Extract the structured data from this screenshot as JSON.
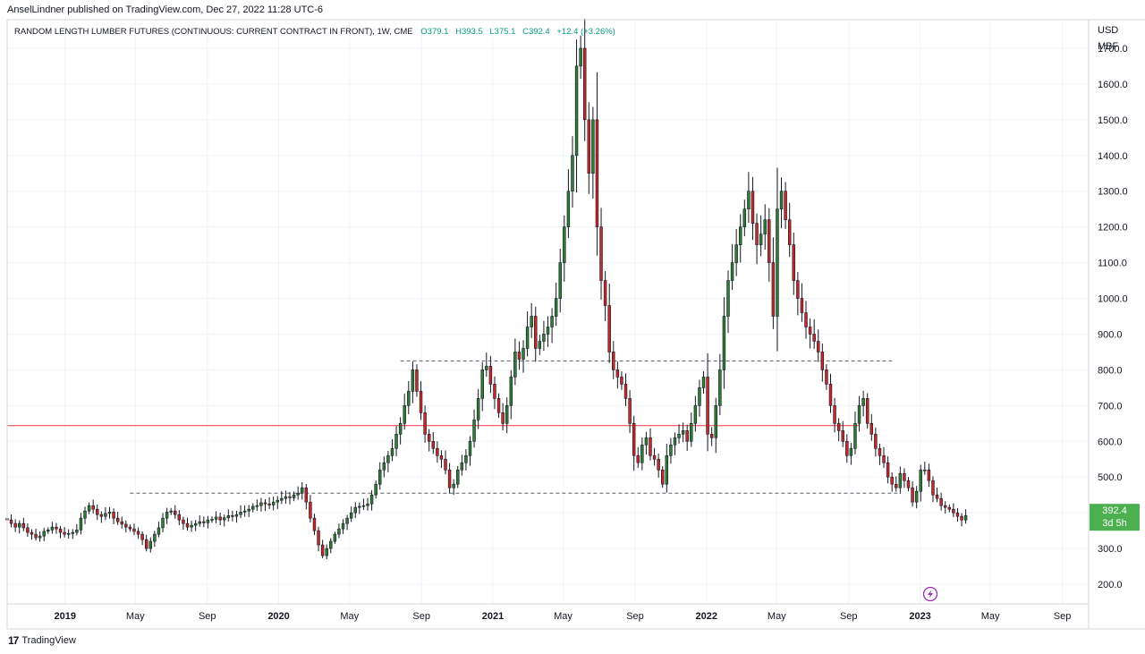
{
  "header": {
    "publisher": "AnselLindner published on TradingView.com, Dec 27, 2022 11:28 UTC-6"
  },
  "footer": {
    "brand": "TradingView",
    "brand_mark": "17"
  },
  "chart_data": {
    "type": "candlestick",
    "title": "RANDOM LENGTH LUMBER FUTURES (CONTINUOUS: CURRENT CONTRACT IN FRONT), 1W, CME",
    "ohlc_text": {
      "o": "O379.1",
      "h": "H393.5",
      "l": "L375.1",
      "c": "C392.4",
      "chg": "+12.4 (+3.26%)"
    },
    "currency": "USD",
    "unit": "MBF",
    "ylim": [
      145,
      1780
    ],
    "yticks": [
      200,
      300,
      400,
      500,
      600,
      700,
      800,
      900,
      1000,
      1100,
      1200,
      1300,
      1400,
      1500,
      1600,
      1700
    ],
    "ytick_labels": [
      "200.0",
      "300.0",
      "400.0",
      "500.0",
      "600.0",
      "700.0",
      "800.0",
      "900.0",
      "1000.0",
      "1100.0",
      "1200.0",
      "1300.0",
      "1400.0",
      "1500.0",
      "1600.0",
      "1700.0"
    ],
    "xrange": [
      "2018-09-24",
      "2023-10-16"
    ],
    "xticks": [
      {
        "date": "2019-01-01",
        "label": "2019",
        "bold": true
      },
      {
        "date": "2019-05-01",
        "label": "May",
        "bold": false
      },
      {
        "date": "2019-09-01",
        "label": "Sep",
        "bold": false
      },
      {
        "date": "2020-01-01",
        "label": "2020",
        "bold": true
      },
      {
        "date": "2020-05-01",
        "label": "May",
        "bold": false
      },
      {
        "date": "2020-09-01",
        "label": "Sep",
        "bold": false
      },
      {
        "date": "2021-01-01",
        "label": "2021",
        "bold": true
      },
      {
        "date": "2021-05-01",
        "label": "May",
        "bold": false
      },
      {
        "date": "2021-09-01",
        "label": "Sep",
        "bold": false
      },
      {
        "date": "2022-01-01",
        "label": "2022",
        "bold": true
      },
      {
        "date": "2022-05-01",
        "label": "May",
        "bold": false
      },
      {
        "date": "2022-09-01",
        "label": "Sep",
        "bold": false
      },
      {
        "date": "2023-01-01",
        "label": "2023",
        "bold": true
      },
      {
        "date": "2023-05-01",
        "label": "May",
        "bold": false
      },
      {
        "date": "2023-09-01",
        "label": "Sep",
        "bold": false
      }
    ],
    "first_bar": "2018-09-24",
    "closes": [
      380,
      370,
      360,
      370,
      358,
      345,
      340,
      330,
      335,
      348,
      352,
      360,
      355,
      345,
      340,
      342,
      345,
      352,
      385,
      405,
      420,
      410,
      395,
      390,
      398,
      402,
      385,
      375,
      368,
      360,
      355,
      348,
      340,
      325,
      300,
      320,
      340,
      358,
      385,
      402,
      405,
      395,
      380,
      370,
      360,
      365,
      370,
      375,
      372,
      380,
      382,
      388,
      380,
      386,
      392,
      390,
      395,
      402,
      405,
      410,
      418,
      420,
      428,
      425,
      422,
      430,
      435,
      440,
      445,
      442,
      450,
      455,
      470,
      430,
      385,
      350,
      310,
      280,
      300,
      320,
      340,
      355,
      370,
      385,
      400,
      415,
      418,
      420,
      425,
      450,
      480,
      520,
      540,
      560,
      580,
      620,
      650,
      700,
      740,
      800,
      740,
      680,
      620,
      600,
      580,
      560,
      550,
      520,
      470,
      480,
      520,
      540,
      560,
      600,
      660,
      720,
      800,
      810,
      760,
      720,
      680,
      650,
      700,
      780,
      850,
      830,
      860,
      920,
      950,
      860,
      880,
      900,
      920,
      950,
      1000,
      1100,
      1200,
      1300,
      1400,
      1650,
      1700,
      1500,
      1350,
      1500,
      1200,
      1050,
      980,
      850,
      800,
      780,
      760,
      720,
      650,
      560,
      540,
      590,
      610,
      560,
      550,
      520,
      480,
      560,
      590,
      610,
      620,
      630,
      600,
      650,
      700,
      750,
      780,
      620,
      610,
      700,
      800,
      950,
      1050,
      1100,
      1150,
      1200,
      1250,
      1300,
      1210,
      1150,
      1180,
      1220,
      1100,
      950,
      1250,
      1300,
      1220,
      1150,
      1050,
      1000,
      960,
      920,
      900,
      880,
      850,
      800,
      760,
      700,
      650,
      630,
      600,
      560,
      580,
      650,
      700,
      720,
      650,
      620,
      580,
      560,
      540,
      500,
      480,
      470,
      510,
      490,
      470,
      430,
      460,
      520,
      520,
      490,
      450,
      440,
      420,
      415,
      410,
      400,
      390,
      380,
      392.4
    ],
    "levels": [
      {
        "price": 455,
        "from": "2019-04-22",
        "to": "2022-11-28",
        "style": "dashed",
        "color": "#5d606b"
      },
      {
        "price": 825,
        "from": "2020-07-27",
        "to": "2022-11-14",
        "style": "dashed",
        "color": "#5d606b"
      },
      {
        "price": 644,
        "from": "2018-09-24",
        "to": "2022-09-19",
        "style": "solid",
        "color": "#f23645"
      }
    ],
    "last_price": {
      "value": 392.4,
      "label": "392.4",
      "countdown": "3d 5h"
    },
    "colors": {
      "up": "#2e7d32",
      "down": "#c62828",
      "last_price_bg": "#4caf50"
    },
    "grid": true
  }
}
